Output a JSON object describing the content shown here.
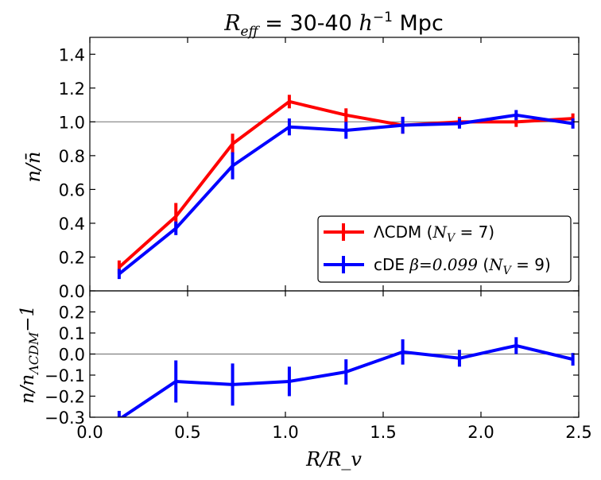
{
  "chart_data": {
    "type": "line",
    "title": "R_eff = 30-40 h^-1 Mpc",
    "title_parts": {
      "math": "R",
      "sub": "eff",
      "mid": " = 30-40 ",
      "h": "h",
      "sup": "−1",
      "end": " Mpc"
    },
    "x": [
      0.15,
      0.44,
      0.73,
      1.02,
      1.31,
      1.6,
      1.89,
      2.18,
      2.47
    ],
    "xlabel": "R/R_v",
    "xlim": [
      0.0,
      2.5
    ],
    "xticks": [
      "0.0",
      "0.5",
      "1.0",
      "1.5",
      "2.0",
      "2.5"
    ],
    "top_panel": {
      "ylabel": "n/n̄",
      "ylim": [
        0.0,
        1.5
      ],
      "yticks": [
        "0.0",
        "0.2",
        "0.4",
        "0.6",
        "0.8",
        "1.0",
        "1.2",
        "1.4"
      ],
      "reference_line": 1.0,
      "legend_position": "lower-right",
      "series": [
        {
          "name": "ΛCDM (N_V = 7)",
          "label_a": "ΛCDM (",
          "label_nv": "N",
          "label_nv_sub": "V",
          "label_b": " = 7)",
          "color": "#ff0000",
          "values": [
            0.14,
            0.44,
            0.87,
            1.12,
            1.04,
            0.98,
            1.0,
            1.0,
            1.02
          ],
          "errors": [
            0.04,
            0.08,
            0.06,
            0.04,
            0.04,
            0.05,
            0.03,
            0.03,
            0.03
          ]
        },
        {
          "name": "cDE β=0.099 (N_V = 9)",
          "label_a": "cDE ",
          "label_beta": "β=0.099",
          "label_c": " (",
          "label_nv": "N",
          "label_nv_sub": "V",
          "label_b": " = 9)",
          "color": "#0000ff",
          "values": [
            0.1,
            0.37,
            0.74,
            0.97,
            0.95,
            0.98,
            0.99,
            1.04,
            0.99
          ],
          "errors": [
            0.03,
            0.04,
            0.08,
            0.05,
            0.05,
            0.05,
            0.03,
            0.03,
            0.03
          ]
        }
      ]
    },
    "bottom_panel": {
      "ylabel": "n/n_ΛCDM − 1",
      "ylabel_parts": {
        "a": "n/n",
        "sub": "ΛCDM",
        "b": "−1"
      },
      "ylim": [
        -0.3,
        0.3
      ],
      "yticks": [
        "−0.3",
        "−0.2",
        "−0.1",
        "0.0",
        "0.1",
        "0.2"
      ],
      "reference_line": 0.0,
      "series": [
        {
          "name": "cDE β=0.099",
          "color": "#0000ff",
          "values": [
            -0.31,
            -0.13,
            -0.145,
            -0.13,
            -0.085,
            0.01,
            -0.02,
            0.04,
            -0.025
          ],
          "errors": [
            0.04,
            0.1,
            0.1,
            0.07,
            0.06,
            0.06,
            0.04,
            0.04,
            0.03
          ]
        }
      ]
    }
  }
}
